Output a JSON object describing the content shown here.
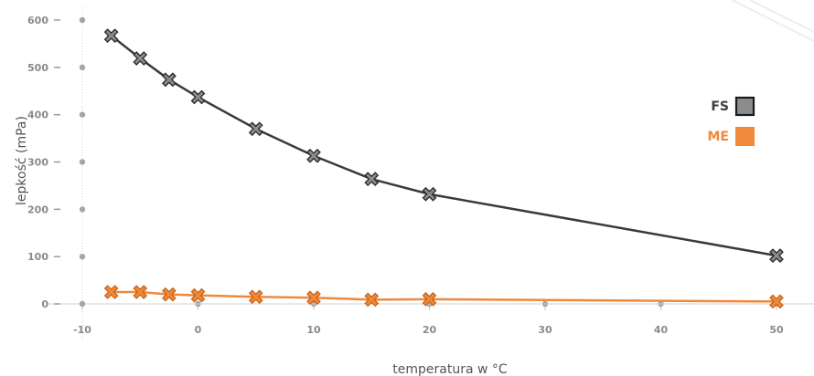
{
  "chart_data": {
    "type": "line",
    "title": "",
    "xlabel": "temperatura w °C",
    "ylabel": "lepkość (mPa)",
    "xlim": [
      -10,
      50
    ],
    "ylim": [
      0,
      600
    ],
    "x_ticks": [
      "-10",
      "0",
      "10",
      "20",
      "30",
      "40",
      "50"
    ],
    "y_ticks": [
      "0",
      "100",
      "200",
      "300",
      "400",
      "500",
      "600"
    ],
    "grid": false,
    "legend_position": "right",
    "series": [
      {
        "name": "FS",
        "color": "#3a3a3a",
        "marker_color": "#8c8c8c",
        "x": [
          -7.5,
          -5,
          -2.5,
          0,
          5,
          10,
          15,
          20,
          50
        ],
        "y": [
          567,
          519,
          474,
          437,
          370,
          313,
          264,
          232,
          102
        ]
      },
      {
        "name": "ME",
        "color": "#f0893a",
        "marker_color": "#f0893a",
        "x": [
          -7.5,
          -5,
          -2.5,
          0,
          5,
          10,
          15,
          20,
          50
        ],
        "y": [
          25,
          25,
          20,
          18,
          15,
          13,
          9,
          10,
          5
        ]
      }
    ]
  }
}
